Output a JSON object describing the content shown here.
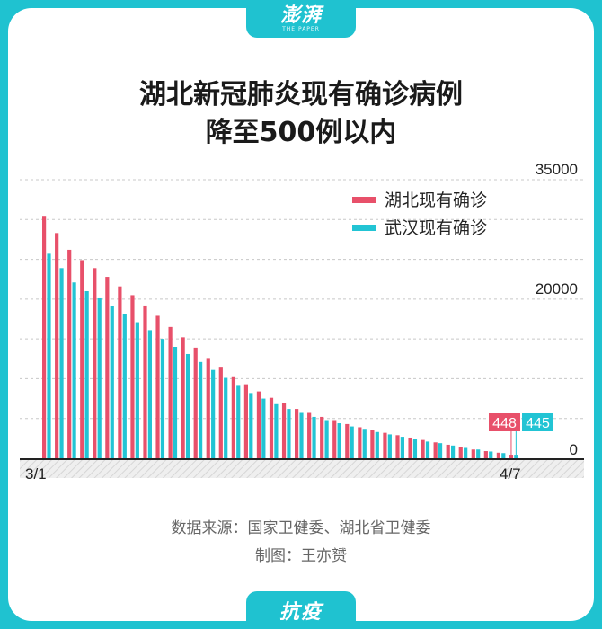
{
  "brand": {
    "logo": "澎湃",
    "sub": "THE PAPER"
  },
  "title_line1": "湖北新冠肺炎现有确诊病例",
  "title_line2": "降至500例以内",
  "source": "数据来源：国家卫健委、湖北省卫健委",
  "author": "制图：王亦赟",
  "tag": "抗疫",
  "colors": {
    "hubei": "#e8506a",
    "wuhan": "#22c4d4",
    "accent": "#1fc2d0"
  },
  "chart_data": {
    "type": "bar",
    "x_start_label": "3/1",
    "x_end_label": "4/7",
    "y_ticks": [
      35000,
      20000,
      0
    ],
    "ylim": [
      0,
      35000
    ],
    "grid": true,
    "legend_position": "top-right",
    "series": [
      {
        "name": "湖北现有确诊",
        "values": [
          30460,
          28300,
          26200,
          24900,
          23900,
          22800,
          21600,
          20500,
          19200,
          17900,
          16500,
          15200,
          13900,
          12600,
          11500,
          10300,
          9300,
          8400,
          7600,
          6900,
          6200,
          5700,
          5200,
          4800,
          4300,
          3900,
          3600,
          3200,
          2900,
          2600,
          2300,
          2000,
          1700,
          1400,
          1100,
          900,
          700,
          448
        ]
      },
      {
        "name": "武汉现有确诊",
        "values": [
          25700,
          23900,
          22100,
          21000,
          20100,
          19100,
          18100,
          17100,
          16100,
          15000,
          14000,
          13100,
          12100,
          11100,
          10100,
          9100,
          8200,
          7500,
          6800,
          6200,
          5700,
          5200,
          4800,
          4400,
          4000,
          3700,
          3300,
          3000,
          2700,
          2400,
          2100,
          1900,
          1600,
          1300,
          1100,
          850,
          650,
          445
        ]
      }
    ],
    "last_labels": {
      "hubei": "448",
      "wuhan": "445"
    }
  }
}
